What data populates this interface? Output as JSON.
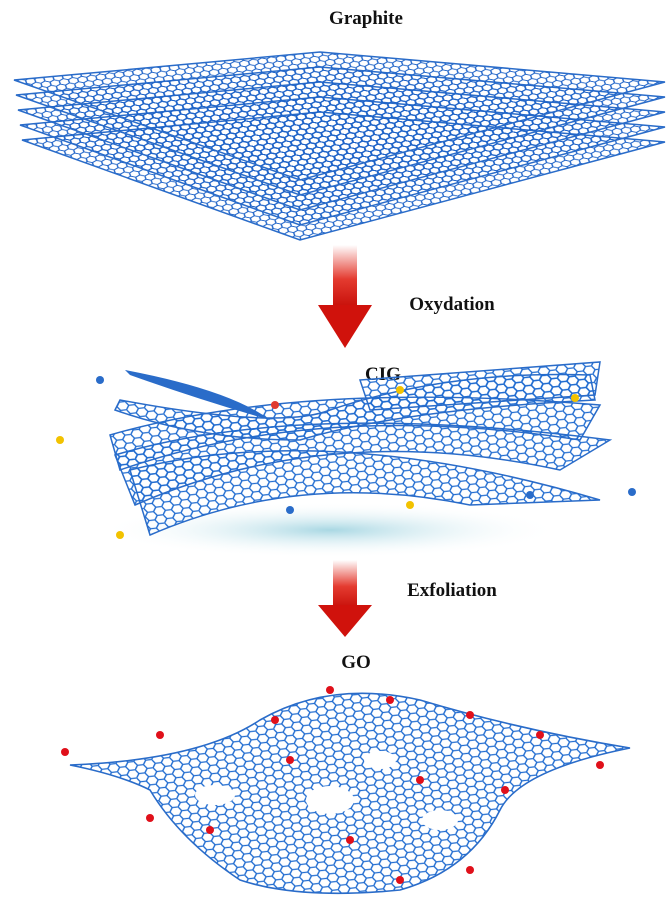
{
  "stages": [
    {
      "label": "Graphite"
    },
    {
      "label": "CIG"
    },
    {
      "label": "GO"
    }
  ],
  "transitions": [
    {
      "label": "Oxydation"
    },
    {
      "label": "Exfoliation"
    }
  ]
}
